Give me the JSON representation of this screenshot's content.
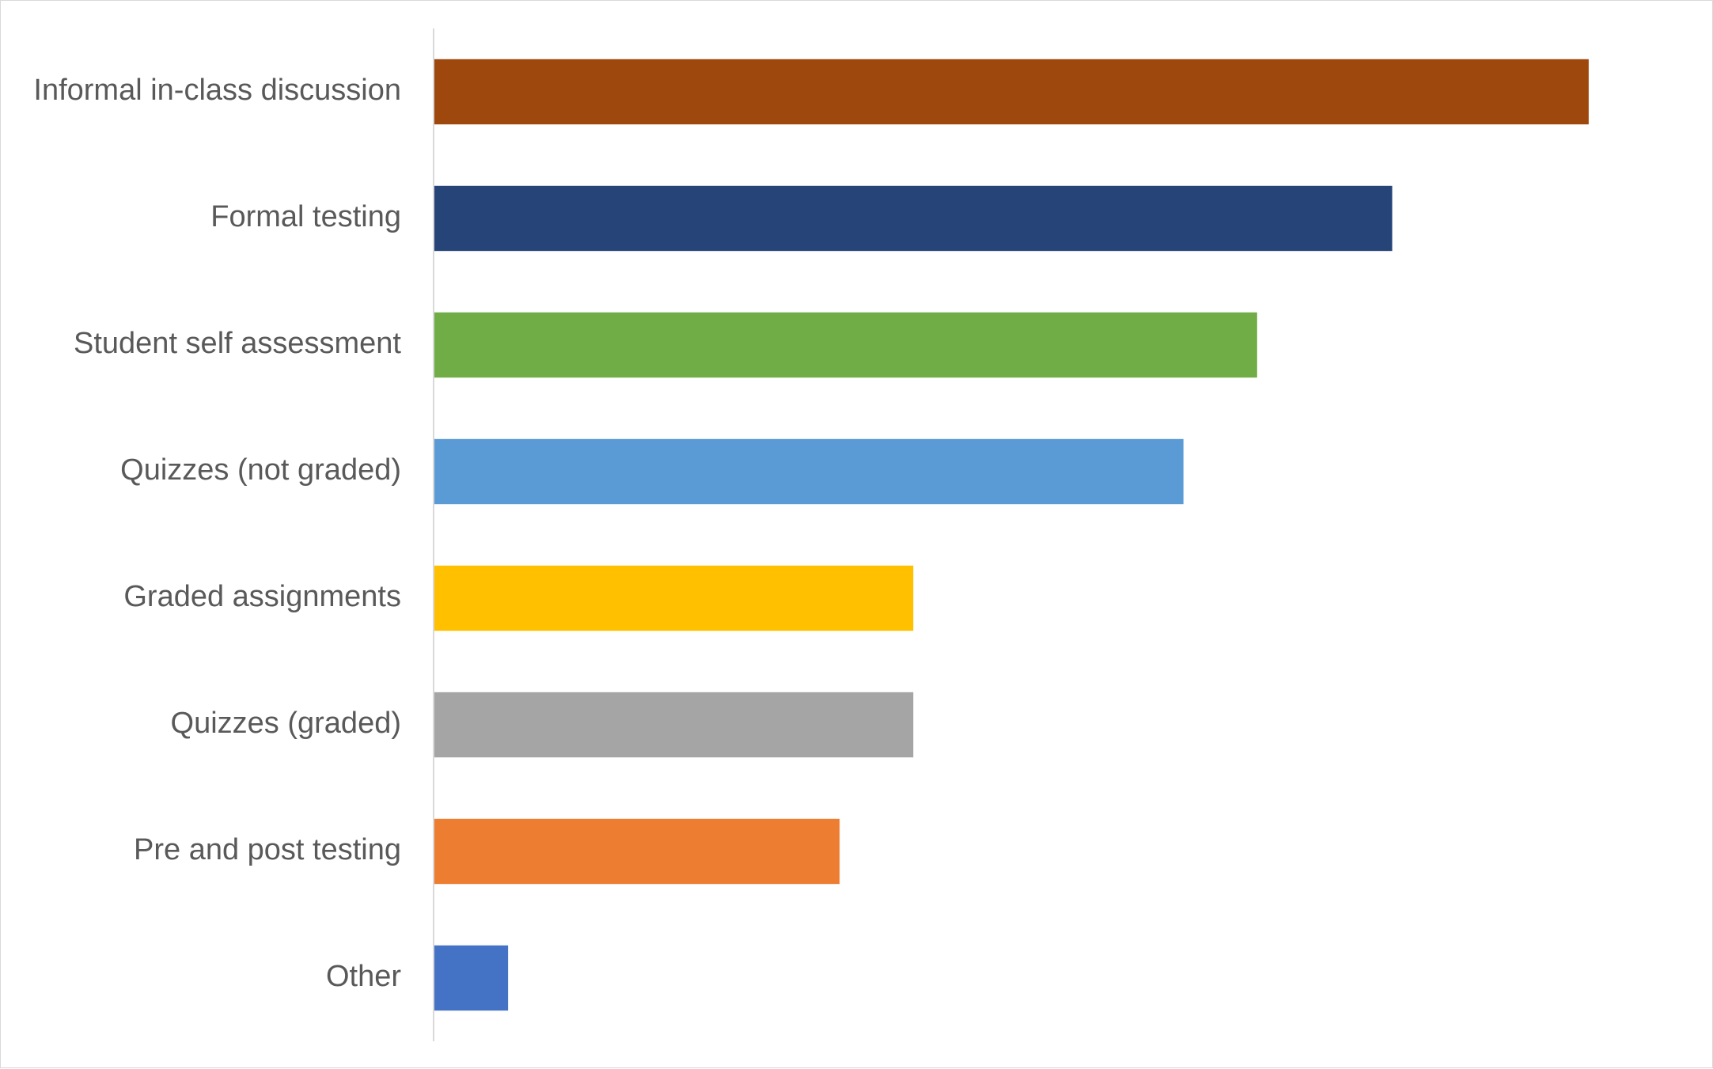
{
  "chart_data": {
    "type": "bar",
    "orientation": "horizontal",
    "categories": [
      "Informal in-class discussion",
      "Formal testing",
      "Student self assessment",
      "Quizzes (not graded)",
      "Graded assignments",
      "Quizzes (graded)",
      "Pre and post testing",
      "Other"
    ],
    "values": [
      94,
      78,
      67,
      61,
      39,
      39,
      33,
      6
    ],
    "colors": [
      "#9E480E",
      "#264478",
      "#70AD47",
      "#5B9BD5",
      "#FFC000",
      "#A5A5A5",
      "#ED7D31",
      "#4472C4"
    ],
    "title": "",
    "xlabel": "",
    "ylabel": "",
    "xlim": [
      0,
      100
    ],
    "grid": false,
    "legend": "none",
    "axis_color": "#d9d9d9",
    "label_color": "#595959"
  }
}
